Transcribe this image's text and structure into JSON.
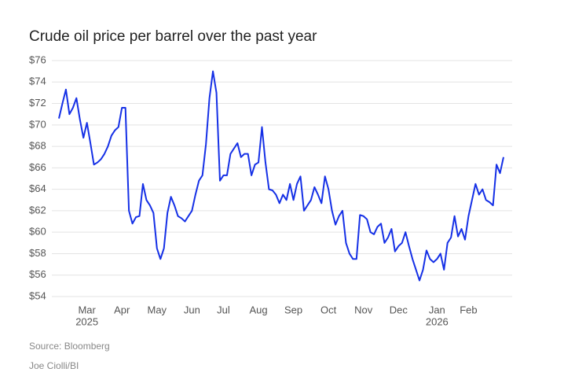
{
  "chart_data": {
    "type": "line",
    "title": "Crude oil price per barrel over the past year",
    "source": "Source: Bloomberg",
    "byline": "Joe Ciolli/BI",
    "color": "#1530e6",
    "grid": true,
    "ylim": [
      54,
      76
    ],
    "yticks": [
      {
        "value": 54,
        "label": "$54"
      },
      {
        "value": 56,
        "label": "$56"
      },
      {
        "value": 58,
        "label": "$58"
      },
      {
        "value": 60,
        "label": "$60"
      },
      {
        "value": 62,
        "label": "$62"
      },
      {
        "value": 64,
        "label": "$64"
      },
      {
        "value": 66,
        "label": "$66"
      },
      {
        "value": 68,
        "label": "$68"
      },
      {
        "value": 70,
        "label": "$70"
      },
      {
        "value": 72,
        "label": "$72"
      },
      {
        "value": 74,
        "label": "$74"
      },
      {
        "value": 76,
        "label": "$76"
      }
    ],
    "categories": [
      null,
      null,
      null,
      null,
      null,
      null,
      null,
      null,
      "Mar",
      null,
      null,
      null,
      null,
      null,
      null,
      null,
      null,
      null,
      "Apr",
      null,
      null,
      null,
      null,
      null,
      null,
      null,
      null,
      null,
      "May",
      null,
      null,
      null,
      null,
      null,
      null,
      null,
      null,
      null,
      "Jun",
      null,
      null,
      null,
      null,
      null,
      null,
      null,
      null,
      "Jul",
      null,
      null,
      null,
      null,
      null,
      null,
      null,
      null,
      null,
      "Aug",
      null,
      null,
      null,
      null,
      null,
      null,
      null,
      null,
      null,
      "Sep",
      null,
      null,
      null,
      null,
      null,
      null,
      null,
      null,
      null,
      "Oct",
      null,
      null,
      null,
      null,
      null,
      null,
      null,
      null,
      null,
      "Nov",
      null,
      null,
      null,
      null,
      null,
      null,
      null,
      null,
      null,
      "Dec",
      null,
      null,
      null,
      null,
      null,
      null,
      null,
      null,
      null,
      null,
      "Jan",
      null,
      null,
      null,
      null,
      null,
      null,
      null,
      null,
      "Feb",
      null,
      null,
      null,
      null,
      null,
      null,
      null,
      null,
      null,
      null
    ],
    "years": [
      null,
      null,
      null,
      null,
      null,
      null,
      null,
      null,
      "2025",
      null,
      null,
      null,
      null,
      null,
      null,
      null,
      null,
      null,
      null,
      null,
      null,
      null,
      null,
      null,
      null,
      null,
      null,
      null,
      null,
      null,
      null,
      null,
      null,
      null,
      null,
      null,
      null,
      null,
      null,
      null,
      null,
      null,
      null,
      null,
      null,
      null,
      null,
      null,
      null,
      null,
      null,
      null,
      null,
      null,
      null,
      null,
      null,
      null,
      null,
      null,
      null,
      null,
      null,
      null,
      null,
      null,
      null,
      null,
      null,
      null,
      null,
      null,
      null,
      null,
      null,
      null,
      null,
      null,
      null,
      null,
      null,
      null,
      null,
      null,
      null,
      null,
      null,
      null,
      null,
      null,
      null,
      null,
      null,
      null,
      null,
      null,
      null,
      null,
      null,
      null,
      null,
      null,
      null,
      null,
      null,
      null,
      null,
      null,
      "2026",
      null,
      null,
      null,
      null,
      null,
      null,
      null,
      null,
      null,
      null,
      null,
      null,
      null,
      null,
      null,
      null,
      null,
      null,
      null
    ],
    "values": [
      70.6,
      72,
      73.3,
      71,
      71.6,
      72.5,
      70.5,
      68.8,
      70.2,
      68.3,
      66.3,
      66.5,
      66.8,
      67.3,
      68,
      69,
      69.5,
      69.8,
      71.6,
      71.6,
      62,
      60.8,
      61.4,
      61.5,
      64.5,
      63,
      62.5,
      61.8,
      58.5,
      57.5,
      58.5,
      61.8,
      63.3,
      62.5,
      61.5,
      61.3,
      61,
      61.5,
      62,
      63.5,
      64.8,
      65.3,
      68.2,
      72.5,
      75,
      73,
      64.8,
      65.3,
      65.3,
      67.3,
      67.8,
      68.3,
      67,
      67.3,
      67.3,
      65.3,
      66.3,
      66.5,
      69.8,
      66.5,
      64,
      63.9,
      63.5,
      62.7,
      63.5,
      63,
      64.5,
      63,
      64.5,
      65.2,
      62,
      62.5,
      63,
      64.2,
      63.5,
      62.7,
      65.2,
      64,
      62,
      60.7,
      61.5,
      62,
      59,
      58,
      57.5,
      57.5,
      61.6,
      61.5,
      61.2,
      60,
      59.8,
      60.5,
      60.8,
      59,
      59.5,
      60.3,
      58.2,
      58.7,
      59,
      60,
      58.7,
      57.5,
      56.5,
      55.5,
      56.5,
      58.3,
      57.5,
      57.2,
      57.5,
      58,
      56.5,
      59,
      59.5,
      61.5,
      59.6,
      60.3,
      59.3,
      61.5,
      63,
      64.5,
      63.5,
      64,
      63,
      62.8,
      62.5,
      66.3,
      65.5,
      67
    ]
  }
}
